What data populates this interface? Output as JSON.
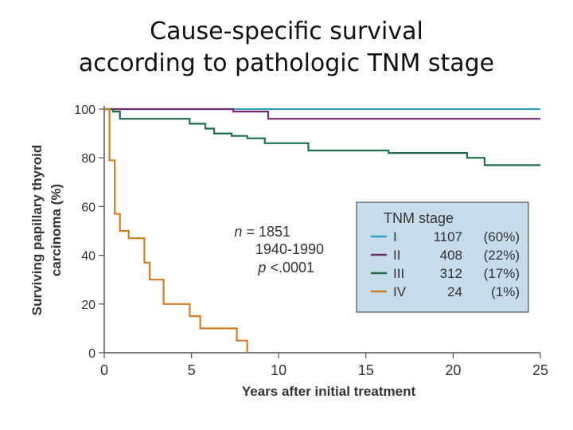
{
  "slide": {
    "title_line1": "Cause-specific survival",
    "title_line2": "according to pathologic TNM stage"
  },
  "chart_data": {
    "type": "line",
    "step": true,
    "xlabel": "Years after initial treatment",
    "ylabel_line1": "Surviving papillary thyroid",
    "ylabel_line2": "carcinoma (%)",
    "xlim": [
      0,
      25
    ],
    "ylim": [
      0,
      100
    ],
    "xticks": [
      0,
      5,
      10,
      15,
      20,
      25
    ],
    "yticks": [
      0,
      20,
      40,
      60,
      80,
      100
    ],
    "annotation": {
      "n_prefix": "n",
      "n_value": " = 1851",
      "years": "1940-1990",
      "p_prefix": "p",
      "p_value": " <.0001"
    },
    "legend": {
      "title": "TNM stage",
      "placement": "center-right",
      "background": "#c6dcea"
    },
    "series": [
      {
        "name": "I",
        "n": "1107",
        "pct": "(60%)",
        "color": "#2ba3c9",
        "x": [
          0,
          25
        ],
        "y": [
          100,
          100
        ]
      },
      {
        "name": "II",
        "n": "408",
        "pct": "(22%)",
        "color": "#7a2a6e",
        "x": [
          0,
          7.4,
          9.4,
          25
        ],
        "y": [
          100,
          99,
          96,
          96
        ]
      },
      {
        "name": "III",
        "n": "312",
        "pct": "(17%)",
        "color": "#1e6e4a",
        "x": [
          0,
          0.5,
          0.9,
          4.9,
          5.8,
          6.3,
          7.3,
          8.2,
          9.2,
          11.7,
          16.3,
          20.8,
          21.8,
          25
        ],
        "y": [
          100,
          99,
          96,
          94,
          92,
          90,
          89,
          88,
          86,
          83,
          82,
          80,
          77,
          77
        ]
      },
      {
        "name": "IV",
        "n": "24",
        "pct": "(1%)",
        "color": "#d27d25",
        "x": [
          0,
          0.3,
          0.6,
          0.9,
          1.4,
          2.3,
          2.6,
          3.4,
          4.9,
          5.5,
          7.6,
          8.2
        ],
        "y": [
          100,
          79,
          57,
          50,
          47,
          37,
          30,
          20,
          15,
          10,
          5,
          0
        ]
      }
    ]
  }
}
